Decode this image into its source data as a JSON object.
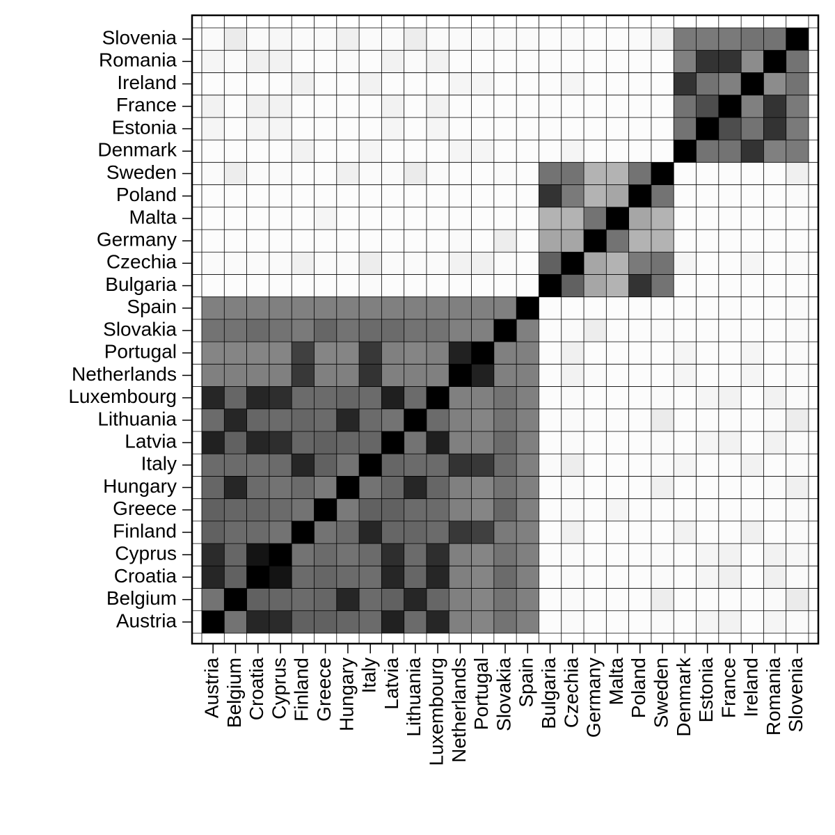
{
  "chart_data": {
    "type": "heatmap",
    "categories": [
      "Austria",
      "Belgium",
      "Croatia",
      "Cyprus",
      "Finland",
      "Greece",
      "Hungary",
      "Italy",
      "Latvia",
      "Lithuania",
      "Luxembourg",
      "Netherlands",
      "Portugal",
      "Slovakia",
      "Spain",
      "Bulgaria",
      "Czechia",
      "Germany",
      "Malta",
      "Poland",
      "Sweden",
      "Denmark",
      "Estonia",
      "France",
      "Ireland",
      "Romania",
      "Slovenia"
    ],
    "grid": true,
    "values": [
      [
        1,
        0.55,
        0.85,
        0.83,
        0.62,
        0.62,
        0.6,
        0.58,
        0.87,
        0.58,
        0.85,
        0.5,
        0.48,
        0.55,
        0.5,
        0.01,
        0.02,
        0.01,
        0.01,
        0.01,
        0.02,
        0.01,
        0.04,
        0.05,
        0.01,
        0.04,
        0.02
      ],
      [
        0.55,
        1,
        0.62,
        0.6,
        0.58,
        0.6,
        0.85,
        0.58,
        0.62,
        0.85,
        0.6,
        0.5,
        0.48,
        0.55,
        0.5,
        0.01,
        0.02,
        0.01,
        0.01,
        0.01,
        0.07,
        0.01,
        0.01,
        0.01,
        0.01,
        0.02,
        0.08
      ],
      [
        0.85,
        0.62,
        1,
        0.92,
        0.58,
        0.6,
        0.58,
        0.57,
        0.85,
        0.6,
        0.85,
        0.5,
        0.48,
        0.58,
        0.5,
        0.01,
        0.02,
        0.01,
        0.01,
        0.01,
        0.02,
        0.01,
        0.04,
        0.06,
        0.01,
        0.06,
        0.02
      ],
      [
        0.83,
        0.6,
        0.92,
        1,
        0.55,
        0.58,
        0.55,
        0.58,
        0.82,
        0.58,
        0.82,
        0.5,
        0.48,
        0.55,
        0.5,
        0.01,
        0.02,
        0.01,
        0.01,
        0.01,
        0.02,
        0.01,
        0.04,
        0.05,
        0.01,
        0.05,
        0.03
      ],
      [
        0.62,
        0.58,
        0.58,
        0.55,
        1,
        0.55,
        0.58,
        0.85,
        0.6,
        0.6,
        0.58,
        0.78,
        0.75,
        0.52,
        0.5,
        0.01,
        0.06,
        0.01,
        0.01,
        0.01,
        0.01,
        0.05,
        0.01,
        0.01,
        0.06,
        0.01,
        0.02
      ],
      [
        0.62,
        0.6,
        0.6,
        0.58,
        0.55,
        1,
        0.52,
        0.62,
        0.62,
        0.58,
        0.58,
        0.5,
        0.48,
        0.6,
        0.5,
        0.01,
        0.02,
        0.01,
        0.04,
        0.01,
        0.01,
        0.01,
        0.01,
        0.01,
        0.01,
        0.01,
        0.02
      ],
      [
        0.6,
        0.85,
        0.58,
        0.55,
        0.58,
        0.52,
        1,
        0.55,
        0.6,
        0.85,
        0.6,
        0.5,
        0.48,
        0.55,
        0.5,
        0.01,
        0.02,
        0.01,
        0.01,
        0.01,
        0.06,
        0.01,
        0.01,
        0.01,
        0.01,
        0.02,
        0.06
      ],
      [
        0.58,
        0.58,
        0.57,
        0.58,
        0.85,
        0.62,
        0.55,
        1,
        0.6,
        0.58,
        0.58,
        0.8,
        0.78,
        0.58,
        0.5,
        0.02,
        0.07,
        0.01,
        0.01,
        0.01,
        0.02,
        0.04,
        0.01,
        0.01,
        0.05,
        0.01,
        0.02
      ],
      [
        0.87,
        0.62,
        0.85,
        0.82,
        0.6,
        0.62,
        0.6,
        0.6,
        1,
        0.55,
        0.88,
        0.5,
        0.5,
        0.58,
        0.5,
        0.01,
        0.02,
        0.01,
        0.01,
        0.01,
        0.02,
        0.01,
        0.04,
        0.05,
        0.01,
        0.05,
        0.02
      ],
      [
        0.58,
        0.85,
        0.6,
        0.58,
        0.6,
        0.58,
        0.85,
        0.58,
        0.55,
        1,
        0.58,
        0.5,
        0.48,
        0.55,
        0.5,
        0.01,
        0.02,
        0.01,
        0.01,
        0.01,
        0.08,
        0.01,
        0.01,
        0.01,
        0.01,
        0.02,
        0.07
      ],
      [
        0.85,
        0.6,
        0.85,
        0.82,
        0.58,
        0.58,
        0.6,
        0.58,
        0.88,
        0.58,
        1,
        0.5,
        0.5,
        0.55,
        0.5,
        0.01,
        0.02,
        0.01,
        0.01,
        0.01,
        0.02,
        0.01,
        0.04,
        0.05,
        0.01,
        0.05,
        0.02
      ],
      [
        0.5,
        0.5,
        0.5,
        0.5,
        0.78,
        0.5,
        0.5,
        0.8,
        0.5,
        0.5,
        0.5,
        1,
        0.87,
        0.5,
        0.5,
        0.01,
        0.05,
        0.02,
        0.01,
        0.01,
        0.01,
        0.04,
        0.01,
        0.01,
        0.04,
        0.01,
        0.02
      ],
      [
        0.48,
        0.48,
        0.48,
        0.48,
        0.75,
        0.48,
        0.48,
        0.78,
        0.5,
        0.48,
        0.5,
        0.87,
        1,
        0.5,
        0.5,
        0.01,
        0.06,
        0.01,
        0.01,
        0.01,
        0.01,
        0.04,
        0.01,
        0.01,
        0.04,
        0.01,
        0.02
      ],
      [
        0.55,
        0.55,
        0.58,
        0.55,
        0.52,
        0.6,
        0.55,
        0.58,
        0.58,
        0.55,
        0.55,
        0.5,
        0.5,
        1,
        0.5,
        0.01,
        0.02,
        0.07,
        0.01,
        0.01,
        0.02,
        0.01,
        0.01,
        0.01,
        0.01,
        0.01,
        0.02
      ],
      [
        0.5,
        0.5,
        0.5,
        0.5,
        0.5,
        0.5,
        0.5,
        0.5,
        0.5,
        0.5,
        0.5,
        0.5,
        0.5,
        0.5,
        1,
        0.01,
        0.01,
        0.01,
        0.01,
        0.01,
        0.01,
        0.01,
        0.01,
        0.01,
        0.01,
        0.01,
        0.02
      ],
      [
        0.01,
        0.01,
        0.01,
        0.01,
        0.01,
        0.01,
        0.01,
        0.02,
        0.01,
        0.01,
        0.01,
        0.01,
        0.01,
        0.01,
        0.01,
        1,
        0.62,
        0.35,
        0.3,
        0.8,
        0.55,
        0.01,
        0.01,
        0.01,
        0.01,
        0.01,
        0.01
      ],
      [
        0.02,
        0.02,
        0.02,
        0.02,
        0.06,
        0.02,
        0.02,
        0.07,
        0.02,
        0.02,
        0.02,
        0.05,
        0.06,
        0.02,
        0.01,
        0.62,
        1,
        0.35,
        0.3,
        0.52,
        0.55,
        0.04,
        0.01,
        0.01,
        0.04,
        0.01,
        0.02
      ],
      [
        0.01,
        0.01,
        0.01,
        0.01,
        0.01,
        0.01,
        0.01,
        0.01,
        0.01,
        0.01,
        0.01,
        0.02,
        0.01,
        0.07,
        0.01,
        0.35,
        0.35,
        1,
        0.55,
        0.3,
        0.3,
        0.01,
        0.01,
        0.01,
        0.01,
        0.01,
        0.01
      ],
      [
        0.01,
        0.01,
        0.01,
        0.01,
        0.01,
        0.04,
        0.01,
        0.01,
        0.01,
        0.01,
        0.01,
        0.01,
        0.01,
        0.01,
        0.01,
        0.3,
        0.3,
        0.55,
        1,
        0.35,
        0.3,
        0.01,
        0.01,
        0.01,
        0.01,
        0.01,
        0.01
      ],
      [
        0.01,
        0.01,
        0.01,
        0.01,
        0.01,
        0.01,
        0.01,
        0.01,
        0.01,
        0.01,
        0.01,
        0.01,
        0.01,
        0.01,
        0.01,
        0.8,
        0.52,
        0.3,
        0.35,
        1,
        0.55,
        0.01,
        0.01,
        0.01,
        0.01,
        0.01,
        0.02
      ],
      [
        0.02,
        0.07,
        0.02,
        0.02,
        0.01,
        0.01,
        0.06,
        0.02,
        0.02,
        0.08,
        0.02,
        0.01,
        0.01,
        0.02,
        0.01,
        0.55,
        0.55,
        0.3,
        0.3,
        0.55,
        1,
        0.01,
        0.01,
        0.01,
        0.01,
        0.01,
        0.06
      ],
      [
        0.01,
        0.01,
        0.01,
        0.01,
        0.05,
        0.01,
        0.01,
        0.04,
        0.01,
        0.01,
        0.01,
        0.04,
        0.04,
        0.01,
        0.01,
        0.01,
        0.04,
        0.01,
        0.01,
        0.01,
        0.01,
        1,
        0.55,
        0.55,
        0.8,
        0.5,
        0.52
      ],
      [
        0.04,
        0.01,
        0.04,
        0.04,
        0.01,
        0.01,
        0.01,
        0.01,
        0.04,
        0.01,
        0.04,
        0.01,
        0.01,
        0.01,
        0.01,
        0.01,
        0.01,
        0.01,
        0.01,
        0.01,
        0.01,
        0.55,
        1,
        0.7,
        0.55,
        0.8,
        0.52
      ],
      [
        0.05,
        0.01,
        0.06,
        0.05,
        0.01,
        0.01,
        0.01,
        0.01,
        0.05,
        0.01,
        0.05,
        0.01,
        0.01,
        0.01,
        0.01,
        0.01,
        0.01,
        0.01,
        0.01,
        0.01,
        0.01,
        0.55,
        0.7,
        1,
        0.5,
        0.8,
        0.52
      ],
      [
        0.01,
        0.01,
        0.01,
        0.01,
        0.06,
        0.01,
        0.01,
        0.05,
        0.01,
        0.01,
        0.01,
        0.04,
        0.04,
        0.01,
        0.01,
        0.01,
        0.04,
        0.01,
        0.01,
        0.01,
        0.01,
        0.8,
        0.55,
        0.5,
        1,
        0.45,
        0.55
      ],
      [
        0.04,
        0.02,
        0.06,
        0.05,
        0.01,
        0.01,
        0.02,
        0.01,
        0.05,
        0.02,
        0.05,
        0.01,
        0.01,
        0.01,
        0.01,
        0.01,
        0.01,
        0.01,
        0.01,
        0.01,
        0.01,
        0.5,
        0.8,
        0.8,
        0.45,
        1,
        0.55
      ],
      [
        0.02,
        0.08,
        0.02,
        0.03,
        0.02,
        0.02,
        0.06,
        0.02,
        0.02,
        0.07,
        0.02,
        0.02,
        0.02,
        0.02,
        0.02,
        0.01,
        0.02,
        0.01,
        0.01,
        0.02,
        0.06,
        0.52,
        0.52,
        0.52,
        0.55,
        0.55,
        1
      ]
    ]
  }
}
